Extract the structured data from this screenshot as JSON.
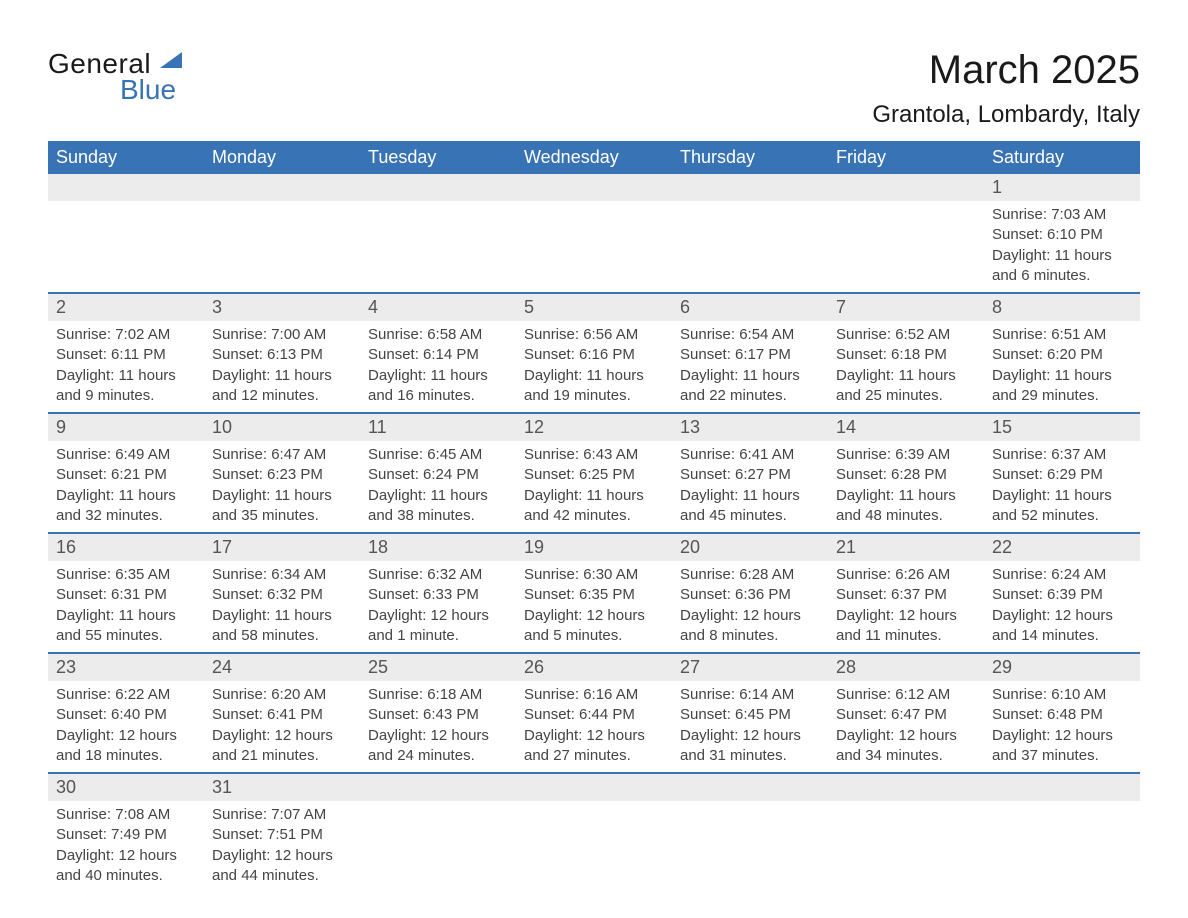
{
  "logo": {
    "text1": "General",
    "text2": "Blue"
  },
  "header": {
    "month_title": "March 2025",
    "location": "Grantola, Lombardy, Italy"
  },
  "day_labels": [
    "Sunday",
    "Monday",
    "Tuesday",
    "Wednesday",
    "Thursday",
    "Friday",
    "Saturday"
  ],
  "colors": {
    "header_bg": "#3773b5",
    "number_row_bg": "#ececec",
    "border": "#3773b5",
    "text_dark": "#1a1a1a",
    "text_muted": "#444444"
  },
  "weeks": [
    [
      null,
      null,
      null,
      null,
      null,
      null,
      {
        "n": "1",
        "sunrise": "Sunrise: 7:03 AM",
        "sunset": "Sunset: 6:10 PM",
        "daylight1": "Daylight: 11 hours",
        "daylight2": "and 6 minutes."
      }
    ],
    [
      {
        "n": "2",
        "sunrise": "Sunrise: 7:02 AM",
        "sunset": "Sunset: 6:11 PM",
        "daylight1": "Daylight: 11 hours",
        "daylight2": "and 9 minutes."
      },
      {
        "n": "3",
        "sunrise": "Sunrise: 7:00 AM",
        "sunset": "Sunset: 6:13 PM",
        "daylight1": "Daylight: 11 hours",
        "daylight2": "and 12 minutes."
      },
      {
        "n": "4",
        "sunrise": "Sunrise: 6:58 AM",
        "sunset": "Sunset: 6:14 PM",
        "daylight1": "Daylight: 11 hours",
        "daylight2": "and 16 minutes."
      },
      {
        "n": "5",
        "sunrise": "Sunrise: 6:56 AM",
        "sunset": "Sunset: 6:16 PM",
        "daylight1": "Daylight: 11 hours",
        "daylight2": "and 19 minutes."
      },
      {
        "n": "6",
        "sunrise": "Sunrise: 6:54 AM",
        "sunset": "Sunset: 6:17 PM",
        "daylight1": "Daylight: 11 hours",
        "daylight2": "and 22 minutes."
      },
      {
        "n": "7",
        "sunrise": "Sunrise: 6:52 AM",
        "sunset": "Sunset: 6:18 PM",
        "daylight1": "Daylight: 11 hours",
        "daylight2": "and 25 minutes."
      },
      {
        "n": "8",
        "sunrise": "Sunrise: 6:51 AM",
        "sunset": "Sunset: 6:20 PM",
        "daylight1": "Daylight: 11 hours",
        "daylight2": "and 29 minutes."
      }
    ],
    [
      {
        "n": "9",
        "sunrise": "Sunrise: 6:49 AM",
        "sunset": "Sunset: 6:21 PM",
        "daylight1": "Daylight: 11 hours",
        "daylight2": "and 32 minutes."
      },
      {
        "n": "10",
        "sunrise": "Sunrise: 6:47 AM",
        "sunset": "Sunset: 6:23 PM",
        "daylight1": "Daylight: 11 hours",
        "daylight2": "and 35 minutes."
      },
      {
        "n": "11",
        "sunrise": "Sunrise: 6:45 AM",
        "sunset": "Sunset: 6:24 PM",
        "daylight1": "Daylight: 11 hours",
        "daylight2": "and 38 minutes."
      },
      {
        "n": "12",
        "sunrise": "Sunrise: 6:43 AM",
        "sunset": "Sunset: 6:25 PM",
        "daylight1": "Daylight: 11 hours",
        "daylight2": "and 42 minutes."
      },
      {
        "n": "13",
        "sunrise": "Sunrise: 6:41 AM",
        "sunset": "Sunset: 6:27 PM",
        "daylight1": "Daylight: 11 hours",
        "daylight2": "and 45 minutes."
      },
      {
        "n": "14",
        "sunrise": "Sunrise: 6:39 AM",
        "sunset": "Sunset: 6:28 PM",
        "daylight1": "Daylight: 11 hours",
        "daylight2": "and 48 minutes."
      },
      {
        "n": "15",
        "sunrise": "Sunrise: 6:37 AM",
        "sunset": "Sunset: 6:29 PM",
        "daylight1": "Daylight: 11 hours",
        "daylight2": "and 52 minutes."
      }
    ],
    [
      {
        "n": "16",
        "sunrise": "Sunrise: 6:35 AM",
        "sunset": "Sunset: 6:31 PM",
        "daylight1": "Daylight: 11 hours",
        "daylight2": "and 55 minutes."
      },
      {
        "n": "17",
        "sunrise": "Sunrise: 6:34 AM",
        "sunset": "Sunset: 6:32 PM",
        "daylight1": "Daylight: 11 hours",
        "daylight2": "and 58 minutes."
      },
      {
        "n": "18",
        "sunrise": "Sunrise: 6:32 AM",
        "sunset": "Sunset: 6:33 PM",
        "daylight1": "Daylight: 12 hours",
        "daylight2": "and 1 minute."
      },
      {
        "n": "19",
        "sunrise": "Sunrise: 6:30 AM",
        "sunset": "Sunset: 6:35 PM",
        "daylight1": "Daylight: 12 hours",
        "daylight2": "and 5 minutes."
      },
      {
        "n": "20",
        "sunrise": "Sunrise: 6:28 AM",
        "sunset": "Sunset: 6:36 PM",
        "daylight1": "Daylight: 12 hours",
        "daylight2": "and 8 minutes."
      },
      {
        "n": "21",
        "sunrise": "Sunrise: 6:26 AM",
        "sunset": "Sunset: 6:37 PM",
        "daylight1": "Daylight: 12 hours",
        "daylight2": "and 11 minutes."
      },
      {
        "n": "22",
        "sunrise": "Sunrise: 6:24 AM",
        "sunset": "Sunset: 6:39 PM",
        "daylight1": "Daylight: 12 hours",
        "daylight2": "and 14 minutes."
      }
    ],
    [
      {
        "n": "23",
        "sunrise": "Sunrise: 6:22 AM",
        "sunset": "Sunset: 6:40 PM",
        "daylight1": "Daylight: 12 hours",
        "daylight2": "and 18 minutes."
      },
      {
        "n": "24",
        "sunrise": "Sunrise: 6:20 AM",
        "sunset": "Sunset: 6:41 PM",
        "daylight1": "Daylight: 12 hours",
        "daylight2": "and 21 minutes."
      },
      {
        "n": "25",
        "sunrise": "Sunrise: 6:18 AM",
        "sunset": "Sunset: 6:43 PM",
        "daylight1": "Daylight: 12 hours",
        "daylight2": "and 24 minutes."
      },
      {
        "n": "26",
        "sunrise": "Sunrise: 6:16 AM",
        "sunset": "Sunset: 6:44 PM",
        "daylight1": "Daylight: 12 hours",
        "daylight2": "and 27 minutes."
      },
      {
        "n": "27",
        "sunrise": "Sunrise: 6:14 AM",
        "sunset": "Sunset: 6:45 PM",
        "daylight1": "Daylight: 12 hours",
        "daylight2": "and 31 minutes."
      },
      {
        "n": "28",
        "sunrise": "Sunrise: 6:12 AM",
        "sunset": "Sunset: 6:47 PM",
        "daylight1": "Daylight: 12 hours",
        "daylight2": "and 34 minutes."
      },
      {
        "n": "29",
        "sunrise": "Sunrise: 6:10 AM",
        "sunset": "Sunset: 6:48 PM",
        "daylight1": "Daylight: 12 hours",
        "daylight2": "and 37 minutes."
      }
    ],
    [
      {
        "n": "30",
        "sunrise": "Sunrise: 7:08 AM",
        "sunset": "Sunset: 7:49 PM",
        "daylight1": "Daylight: 12 hours",
        "daylight2": "and 40 minutes."
      },
      {
        "n": "31",
        "sunrise": "Sunrise: 7:07 AM",
        "sunset": "Sunset: 7:51 PM",
        "daylight1": "Daylight: 12 hours",
        "daylight2": "and 44 minutes."
      },
      null,
      null,
      null,
      null,
      null
    ]
  ]
}
